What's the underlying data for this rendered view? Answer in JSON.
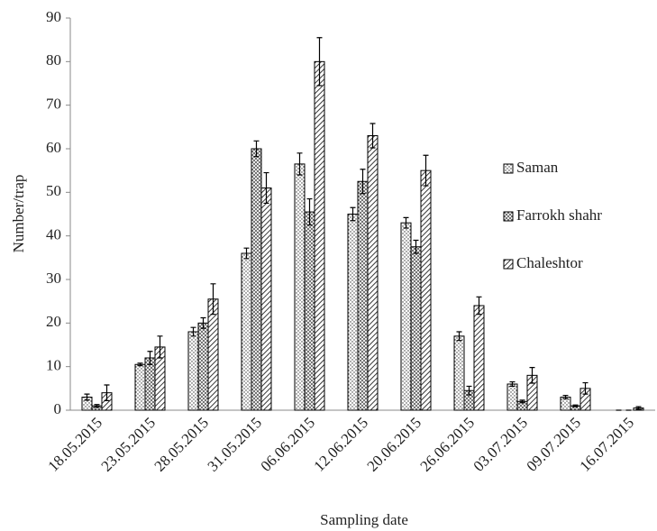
{
  "chart_data": {
    "type": "bar",
    "x_label": "Sampling date",
    "y_label": "Number/trap",
    "categories": [
      "18.05.2015",
      "23.05.2015",
      "28.05.2015",
      "31.05.2015",
      "06.06.2015",
      "12.06.2015",
      "20.06.2015",
      "26.06.2015",
      "03.07.2015",
      "09.07.2015",
      "16.07.2015"
    ],
    "series": [
      {
        "name": "Saman",
        "color": "#000000",
        "values": [
          3,
          10.5,
          18,
          36,
          56.5,
          45,
          43,
          17,
          6,
          3,
          0
        ],
        "errors": [
          0.7,
          0.3,
          1,
          1.2,
          2.5,
          1.5,
          1.2,
          1,
          0.5,
          0.4,
          0
        ]
      },
      {
        "name": "Farrokh shahr",
        "color": "#000000",
        "values": [
          1,
          12,
          20,
          60,
          45.5,
          52.5,
          37.5,
          4.5,
          2,
          1,
          0
        ],
        "errors": [
          0.3,
          1.5,
          1.2,
          1.8,
          3,
          2.8,
          1.5,
          1,
          0.3,
          0.2,
          0
        ]
      },
      {
        "name": "Chaleshtor",
        "color": "#000000",
        "values": [
          4,
          14.5,
          25.5,
          51,
          80,
          63,
          55,
          24,
          8,
          5,
          0.5
        ],
        "errors": [
          1.8,
          2.5,
          3.5,
          3.5,
          5.5,
          2.8,
          3.5,
          2,
          1.8,
          1.3,
          0.3
        ]
      }
    ],
    "ylim": [
      0,
      90
    ],
    "yticks": [
      0,
      10,
      20,
      30,
      40,
      50,
      60,
      70,
      80,
      90
    ],
    "grid": false
  }
}
